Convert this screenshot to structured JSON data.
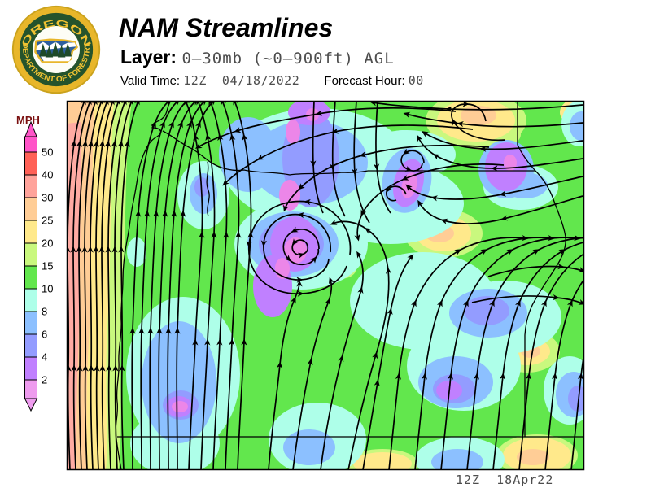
{
  "header": {
    "title": "NAM Streamlines",
    "layer_label": "Layer:",
    "layer_value": "0–30mb (~0–900ft) AGL",
    "valid_time_label": "Valid Time:",
    "valid_time_value": "12Z  04/18/2022",
    "forecast_hour_label": "Forecast Hour:",
    "forecast_hour_value": "00"
  },
  "logo": {
    "top_text": "OREGON",
    "bottom_text": "DEPARTMENT OF FORESTRY"
  },
  "legend": {
    "units": "MPH",
    "segments": [
      {
        "color": "#ff54c8",
        "h": 19
      },
      {
        "color": "#ff6157",
        "h": 28,
        "label": "50"
      },
      {
        "color": "#ffa39b",
        "h": 28,
        "label": "40"
      },
      {
        "color": "#ffcd96",
        "h": 28,
        "label": "30"
      },
      {
        "color": "#ffe98b",
        "h": 28,
        "label": "25"
      },
      {
        "color": "#c9f87e",
        "h": 28,
        "label": "20"
      },
      {
        "color": "#62e74d",
        "h": 28,
        "label": "15"
      },
      {
        "color": "#aeffe9",
        "h": 28,
        "label": "10"
      },
      {
        "color": "#8cc0ff",
        "h": 28,
        "label": "8"
      },
      {
        "color": "#939cff",
        "h": 28,
        "label": "6"
      },
      {
        "color": "#c080ff",
        "h": 28,
        "label": "4"
      },
      {
        "color": "#ee9bee",
        "h": 23,
        "label": "2"
      }
    ]
  },
  "map": {
    "timestamp": "12Z  18Apr22"
  },
  "colors": {
    "logo_gold": "#e8b62a",
    "logo_green": "#25532c",
    "value_text_gray": "#4d4d4d"
  }
}
